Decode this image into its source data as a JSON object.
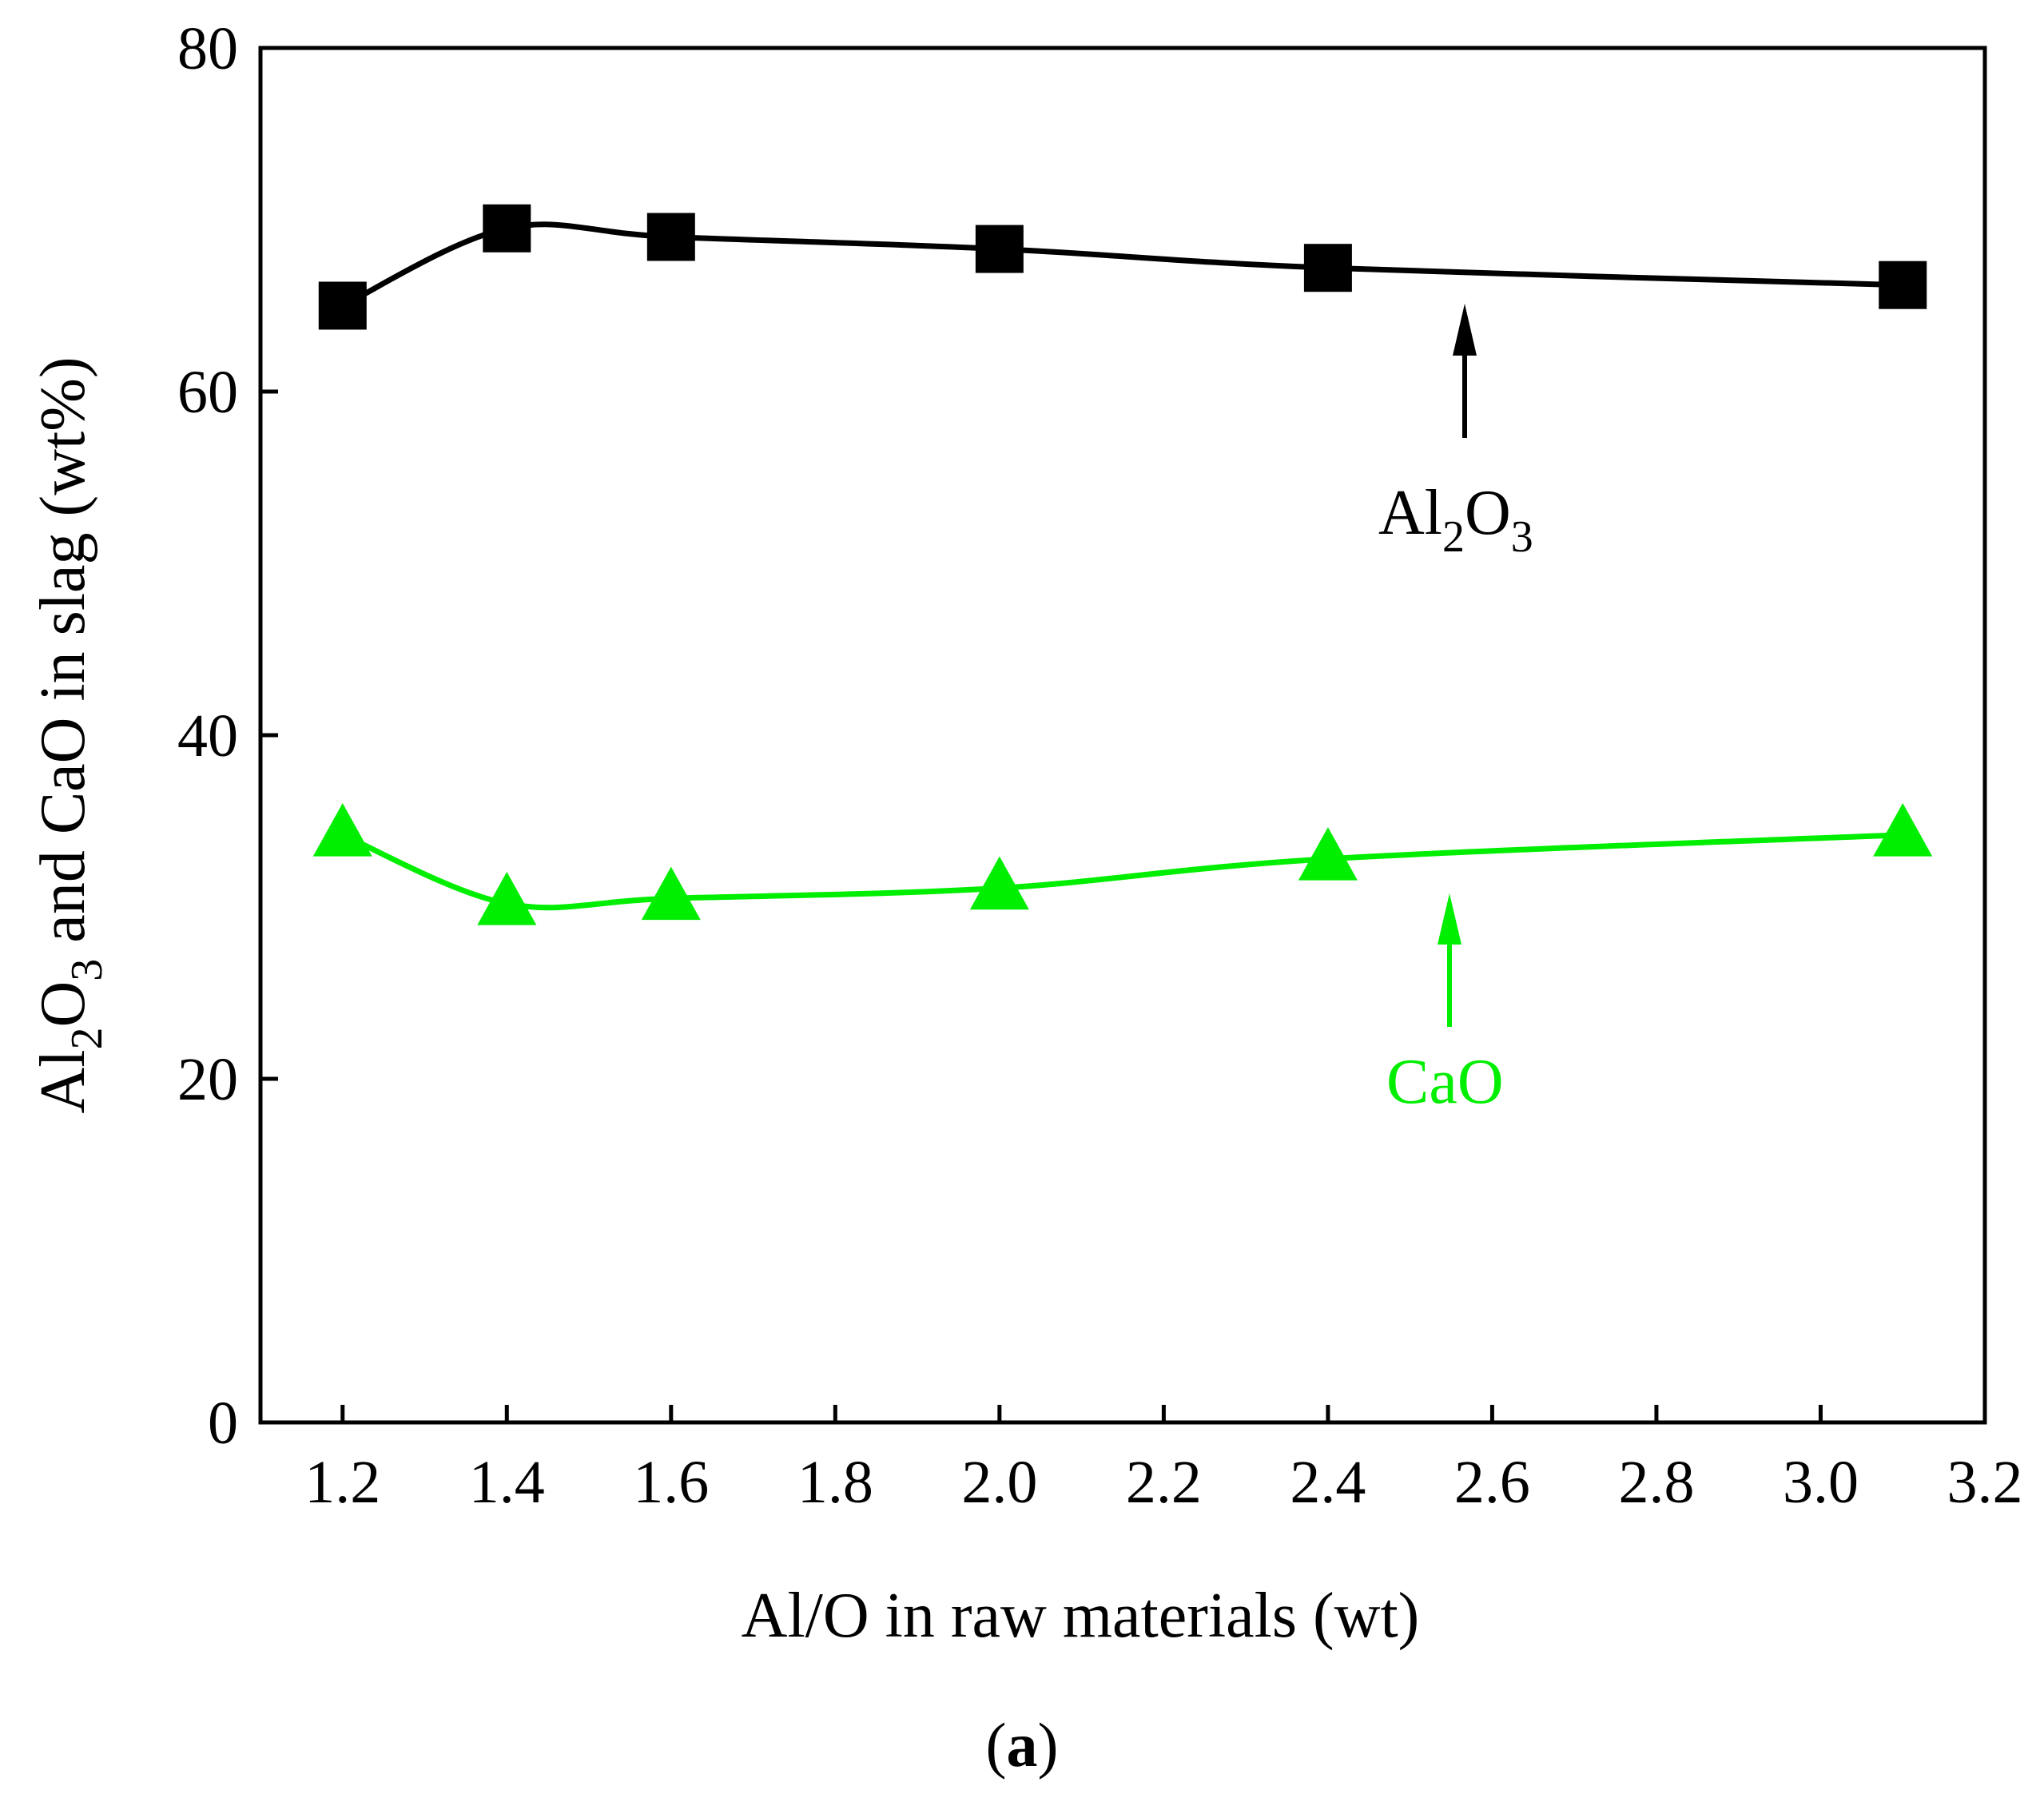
{
  "chart_data": {
    "type": "line",
    "xlabel": "Al/O in raw materials (wt)",
    "ylabel": {
      "part1": "Al",
      "sub1": "2",
      "part2": "O",
      "sub2": "3",
      "part3": " and CaO in slag (wt%)"
    },
    "xlim": [
      1.1,
      3.2
    ],
    "ylim": [
      0,
      80
    ],
    "xticks": [
      "1.2",
      "1.4",
      "1.6",
      "1.8",
      "2.0",
      "2.2",
      "2.4",
      "2.6",
      "2.8",
      "3.0",
      "3.2"
    ],
    "yticks": [
      "0",
      "20",
      "40",
      "60",
      "80"
    ],
    "grid": false,
    "series": [
      {
        "name": "Al2O3",
        "marker": "square",
        "color": "#000000",
        "x": [
          1.2,
          1.4,
          1.6,
          2.0,
          2.4,
          3.1
        ],
        "y": [
          65.0,
          69.5,
          69.0,
          68.3,
          67.2,
          66.2
        ]
      },
      {
        "name": "CaO",
        "marker": "triangle",
        "color": "#00ee00",
        "x": [
          1.2,
          1.4,
          1.6,
          2.0,
          2.4,
          3.1
        ],
        "y": [
          34.2,
          30.2,
          30.5,
          31.1,
          32.8,
          34.2
        ]
      }
    ],
    "annotations": [
      {
        "series": "Al2O3",
        "label": {
          "part1": "Al",
          "sub1": "2",
          "part2": "O",
          "sub2": "3"
        },
        "color": "#000000"
      },
      {
        "series": "CaO",
        "label": "CaO",
        "color": "#00ee00"
      }
    ]
  },
  "caption": {
    "open": "(",
    "letter": "a",
    "close": ")"
  }
}
